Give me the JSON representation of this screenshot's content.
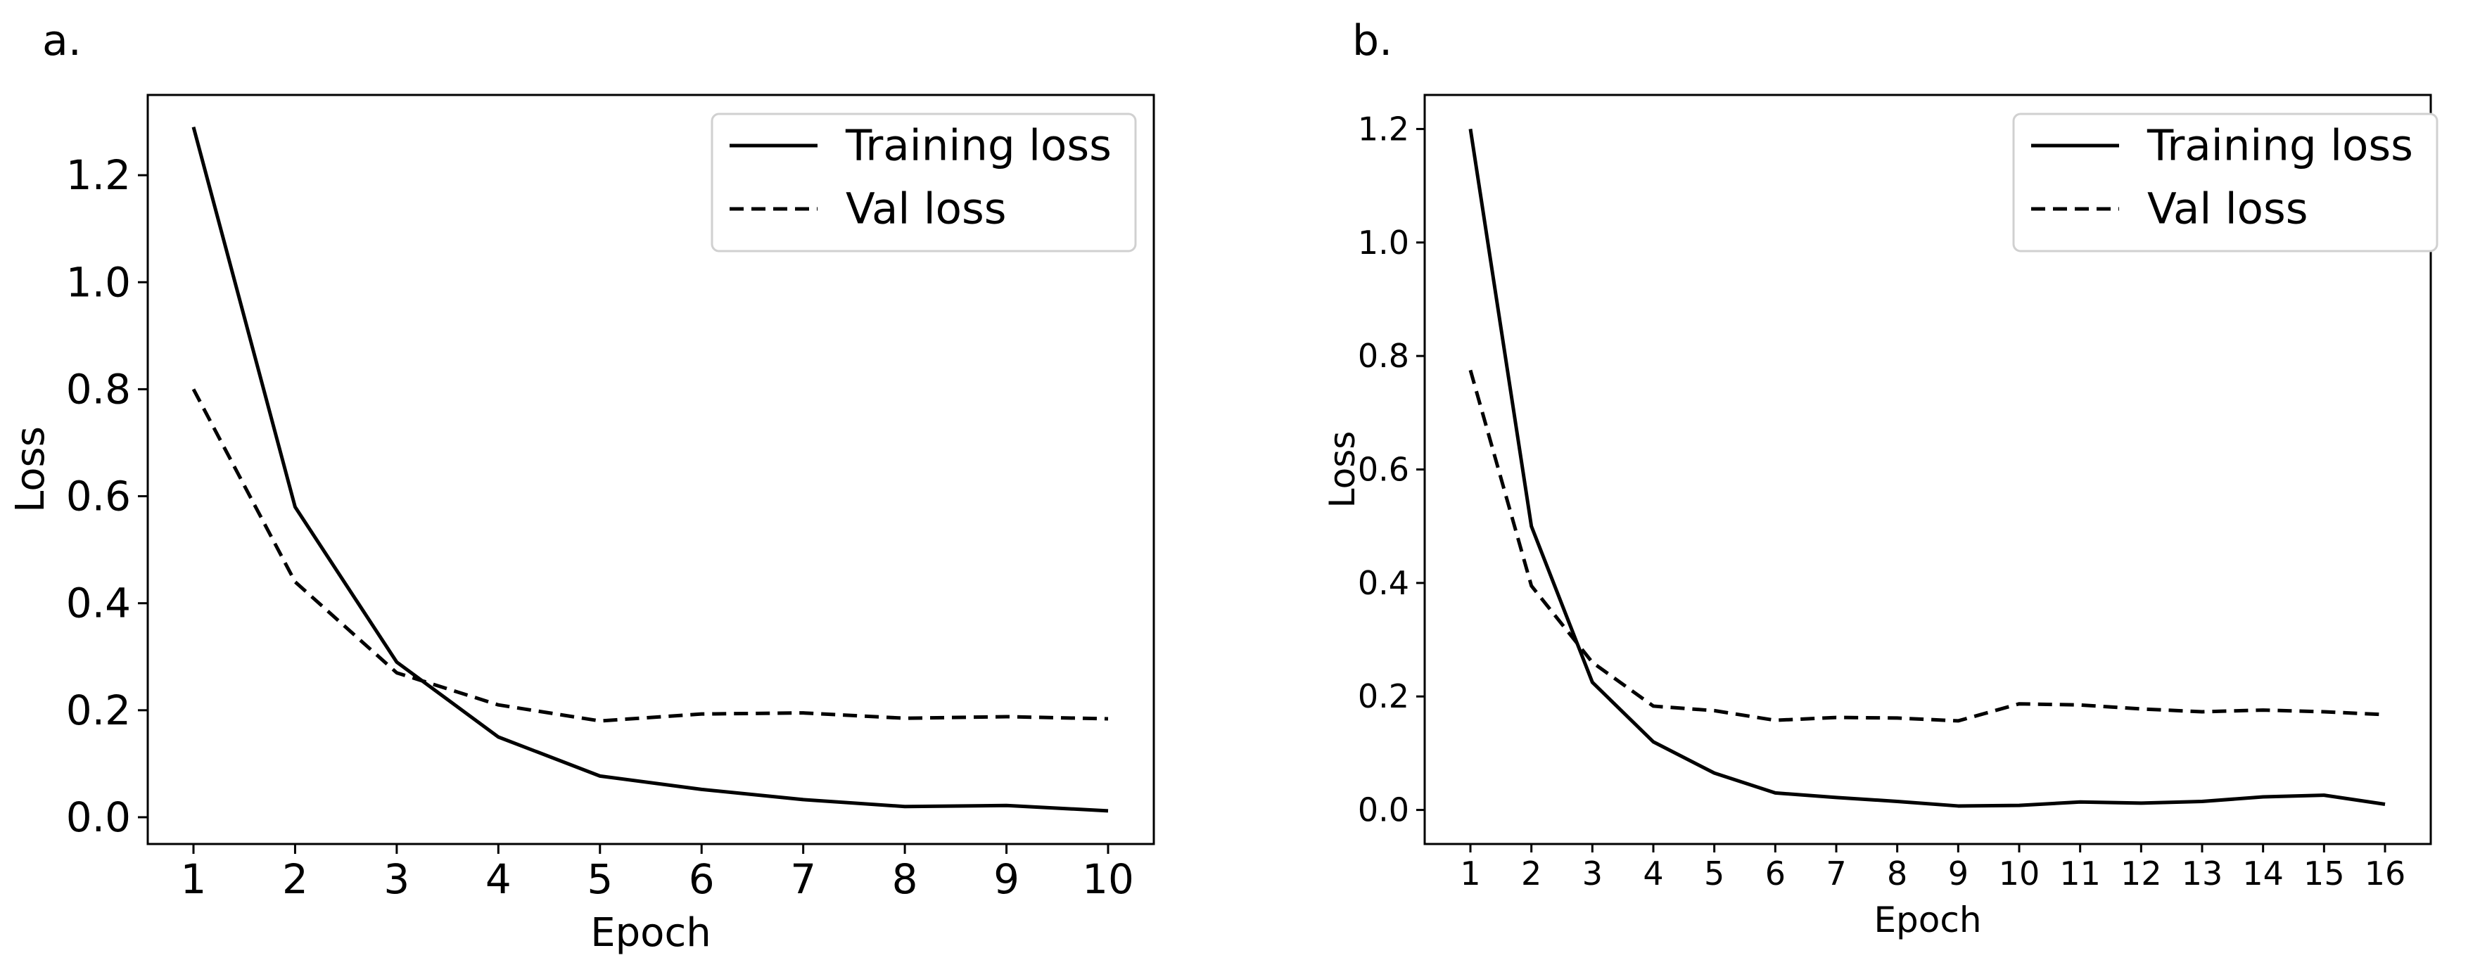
{
  "chart_data": [
    {
      "type": "line",
      "panel_label": "a.",
      "title": "",
      "xlabel": "Epoch",
      "ylabel": "Loss",
      "x": [
        1,
        2,
        3,
        4,
        5,
        6,
        7,
        8,
        9,
        10
      ],
      "xticks": [
        "1",
        "2",
        "3",
        "4",
        "5",
        "6",
        "7",
        "8",
        "9",
        "10"
      ],
      "yticks": [
        "0.0",
        "0.2",
        "0.4",
        "0.6",
        "0.8",
        "1.0",
        "1.2"
      ],
      "xlim": [
        0.55,
        10.45
      ],
      "ylim": [
        -0.05,
        1.35
      ],
      "grid": false,
      "legend_position": "top-right",
      "series": [
        {
          "name": "Training loss",
          "style": "solid",
          "color": "#000000",
          "values": [
            1.29,
            0.58,
            0.29,
            0.15,
            0.077,
            0.052,
            0.033,
            0.02,
            0.022,
            0.012
          ]
        },
        {
          "name": "Val loss",
          "style": "dashed",
          "color": "#000000",
          "values": [
            0.8,
            0.44,
            0.27,
            0.21,
            0.18,
            0.193,
            0.195,
            0.185,
            0.188,
            0.184
          ]
        }
      ]
    },
    {
      "type": "line",
      "panel_label": "b.",
      "title": "",
      "xlabel": "Epoch",
      "ylabel": "Loss",
      "x": [
        1,
        2,
        3,
        4,
        5,
        6,
        7,
        8,
        9,
        10,
        11,
        12,
        13,
        14,
        15,
        16
      ],
      "xticks": [
        "1",
        "2",
        "3",
        "4",
        "5",
        "6",
        "7",
        "8",
        "9",
        "10",
        "11",
        "12",
        "13",
        "14",
        "15",
        "16"
      ],
      "yticks": [
        "0.0",
        "0.2",
        "0.4",
        "0.6",
        "0.8",
        "1.0",
        "1.2"
      ],
      "xlim": [
        0.25,
        16.75
      ],
      "ylim": [
        -0.06,
        1.26
      ],
      "grid": false,
      "legend_position": "top-right",
      "series": [
        {
          "name": "Training loss",
          "style": "solid",
          "color": "#000000",
          "values": [
            1.2,
            0.5,
            0.225,
            0.12,
            0.065,
            0.03,
            0.022,
            0.015,
            0.007,
            0.008,
            0.014,
            0.012,
            0.015,
            0.023,
            0.026,
            0.01
          ]
        },
        {
          "name": "Val loss",
          "style": "dashed",
          "color": "#000000",
          "values": [
            0.775,
            0.395,
            0.26,
            0.183,
            0.175,
            0.158,
            0.163,
            0.162,
            0.157,
            0.187,
            0.185,
            0.178,
            0.173,
            0.176,
            0.173,
            0.168
          ]
        }
      ]
    }
  ]
}
